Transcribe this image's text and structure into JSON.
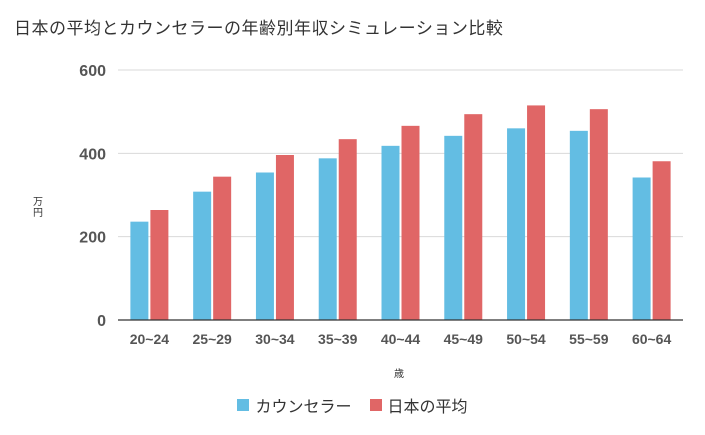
{
  "chart_data": {
    "type": "bar",
    "title": "日本の平均とカウンセラーの年齢別年収シミュレーション比較",
    "xlabel": "歳",
    "ylabel": "万円",
    "ylim": [
      0,
      600
    ],
    "yticks": [
      0,
      200,
      400,
      600
    ],
    "grid": true,
    "legend_position": "bottom",
    "categories": [
      "20~24",
      "25~29",
      "30~34",
      "35~39",
      "40~44",
      "45~49",
      "50~54",
      "55~59",
      "60~64"
    ],
    "series": [
      {
        "name": "カウンセラー",
        "color": "#63bde3",
        "values": [
          236,
          308,
          354,
          388,
          418,
          442,
          460,
          454,
          342
        ]
      },
      {
        "name": "日本の平均",
        "color": "#e06666",
        "values": [
          264,
          344,
          396,
          434,
          466,
          494,
          515,
          506,
          381
        ]
      }
    ]
  }
}
